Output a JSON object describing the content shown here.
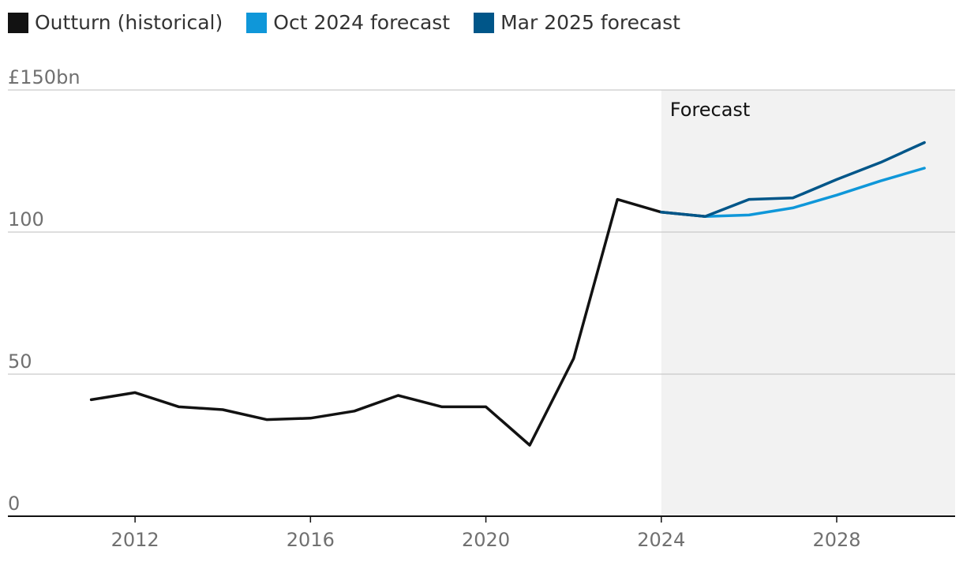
{
  "legend": [
    {
      "label": "Outturn (historical)",
      "color": "#121212"
    },
    {
      "label": "Oct 2024 forecast",
      "color": "#0f97d9"
    },
    {
      "label": "Mar 2025 forecast",
      "color": "#005689"
    }
  ],
  "chart_data": {
    "type": "line",
    "y_unit_label": "£150bn",
    "y_ticks": [
      {
        "value": 150,
        "label": "£150bn"
      },
      {
        "value": 100,
        "label": "100"
      },
      {
        "value": 50,
        "label": "50"
      },
      {
        "value": 0,
        "label": "0"
      }
    ],
    "x_ticks": [
      2012,
      2016,
      2020,
      2024,
      2028
    ],
    "xlim": [
      2009.1,
      2030.7
    ],
    "ylim": [
      0,
      150
    ],
    "grid": true,
    "legend_position": "top-left",
    "forecast_region": {
      "start": 2024,
      "label": "Forecast",
      "color": "#f2f2f2"
    },
    "series": [
      {
        "name": "Outturn (historical)",
        "color": "#121212",
        "x": [
          2011,
          2012,
          2013,
          2014,
          2015,
          2016,
          2017,
          2018,
          2019,
          2020,
          2021,
          2022,
          2023,
          2024,
          2025
        ],
        "y": [
          41,
          43.5,
          38.5,
          37.5,
          34,
          34.5,
          37,
          42.5,
          38.5,
          38.5,
          25,
          55.5,
          111.5,
          107,
          105.5
        ]
      },
      {
        "name": "Oct 2024 forecast",
        "color": "#0f97d9",
        "x": [
          2025,
          2026,
          2027,
          2028,
          2029,
          2030
        ],
        "y": [
          105.5,
          106,
          108.5,
          113,
          118,
          122.5
        ]
      },
      {
        "name": "Mar 2025 forecast",
        "color": "#005689",
        "x": [
          2024,
          2025,
          2026,
          2027,
          2028,
          2029,
          2030
        ],
        "y": [
          107,
          105.5,
          111.5,
          112,
          118.5,
          124.5,
          131.5
        ]
      }
    ]
  }
}
